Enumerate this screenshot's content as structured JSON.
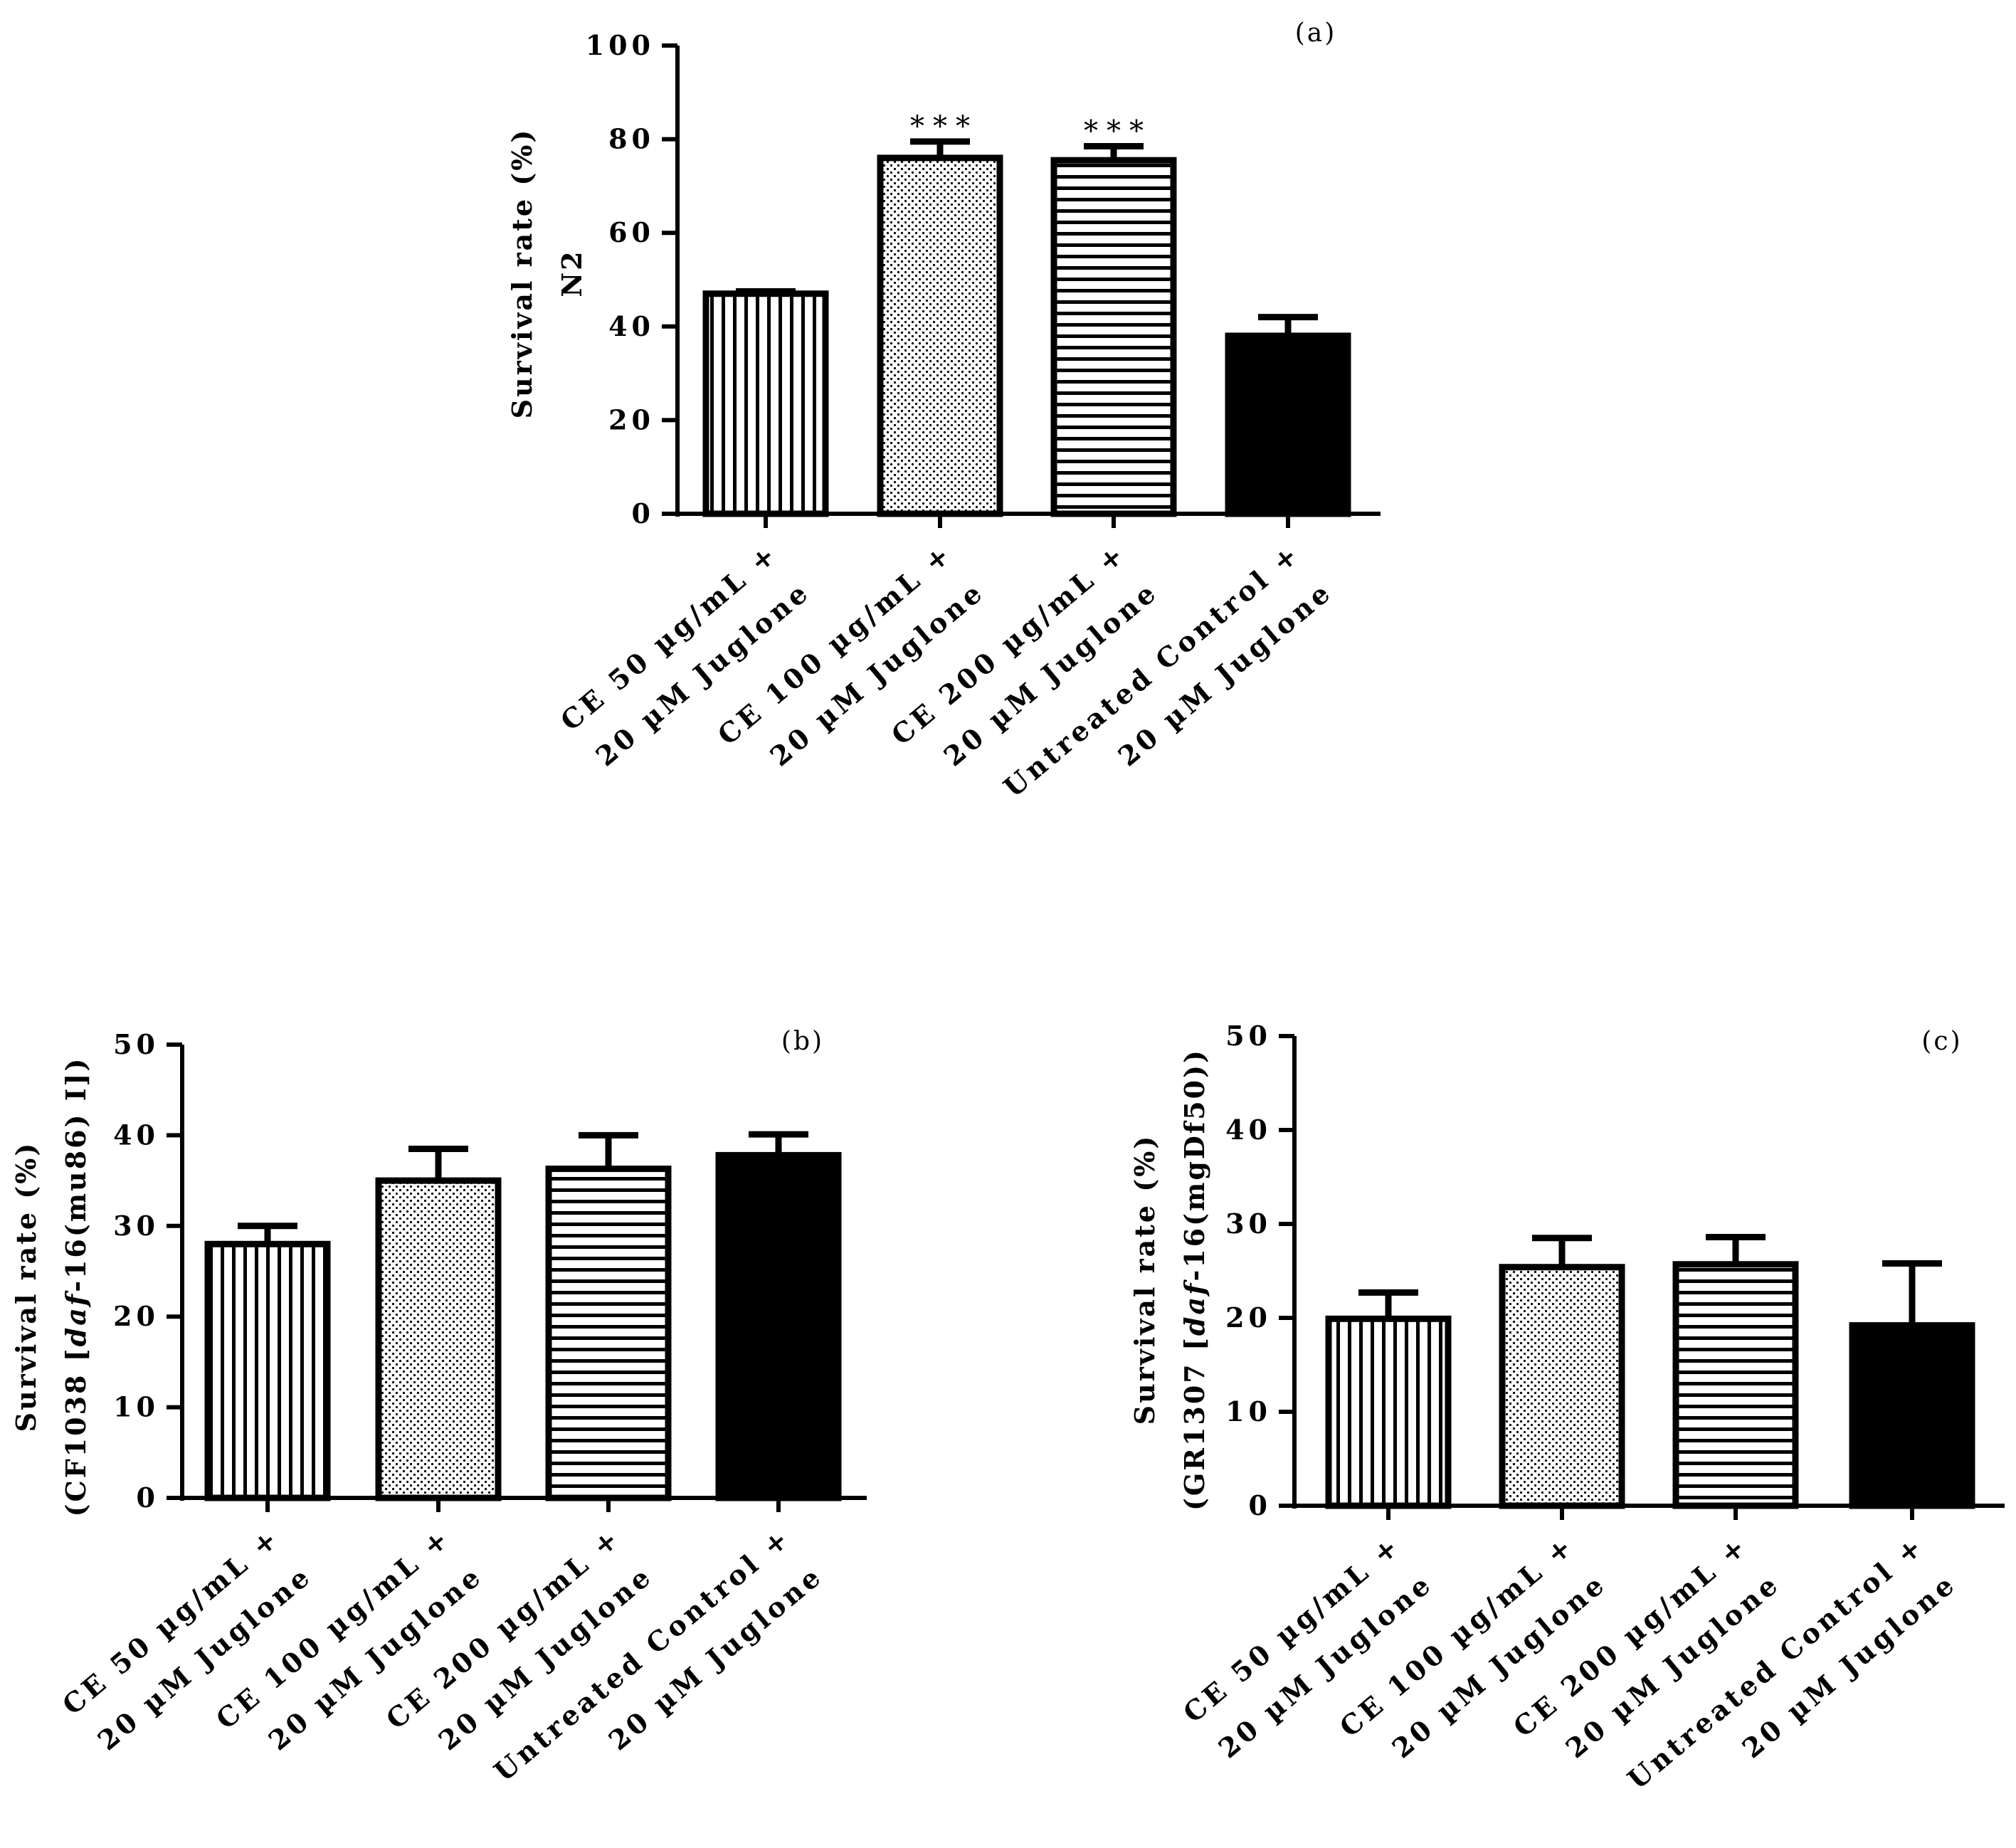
{
  "figure": {
    "panels": [
      "a",
      "b",
      "c"
    ]
  },
  "colors": {
    "ink": "#000000",
    "paper": "#ffffff"
  },
  "chart_data": [
    {
      "id": "a",
      "type": "bar",
      "panel_label": "(a)",
      "ylabel_lines": [
        "Survival rate (%)",
        "N2"
      ],
      "ylabel_italic_parts": [],
      "ylim": [
        0,
        100
      ],
      "yticks": [
        0,
        20,
        40,
        60,
        80,
        100
      ],
      "categories": [
        [
          "CE 50 µg/mL +",
          "20 µM Juglone"
        ],
        [
          "CE 100 µg/mL +",
          "20 µM Juglone"
        ],
        [
          "CE 200 µg/mL +",
          "20 µM Juglone"
        ],
        [
          "Untreated Control +",
          "20 µM Juglone"
        ]
      ],
      "values": [
        47,
        76,
        75.5,
        38
      ],
      "errors": [
        0.5,
        3.5,
        3,
        4
      ],
      "patterns": [
        "vertical-lines",
        "dots",
        "horizontal-lines",
        "solid"
      ],
      "annotations": [
        "",
        "***",
        "***",
        ""
      ]
    },
    {
      "id": "b",
      "type": "bar",
      "panel_label": "(b)",
      "ylabel_lines": [
        "Survival rate (%)",
        "(CF1038 [daf-16(mu86) I])"
      ],
      "ylim": [
        0,
        50
      ],
      "yticks": [
        0,
        10,
        20,
        30,
        40,
        50
      ],
      "categories": [
        [
          "CE 50 µg/mL +",
          "20 µM Juglone"
        ],
        [
          "CE 100 µg/mL +",
          "20 µM Juglone"
        ],
        [
          "CE 200 µg/mL +",
          "20 µM Juglone"
        ],
        [
          "Untreated Control +",
          "20 µM Juglone"
        ]
      ],
      "values": [
        28,
        35,
        36.3,
        37.8
      ],
      "errors": [
        2,
        3.5,
        3.7,
        2.3
      ],
      "patterns": [
        "vertical-lines",
        "dots",
        "horizontal-lines",
        "solid"
      ],
      "annotations": [
        "",
        "",
        "",
        ""
      ]
    },
    {
      "id": "c",
      "type": "bar",
      "panel_label": "(c)",
      "ylabel_lines": [
        "Survival rate (%)",
        "(GR1307 [daf-16(mgDf50))"
      ],
      "ylim": [
        0,
        50
      ],
      "yticks": [
        0,
        10,
        20,
        30,
        40,
        50
      ],
      "categories": [
        [
          "CE 50 µg/mL +",
          "20 µM Juglone"
        ],
        [
          "CE 100 µg/mL +",
          "20 µM Juglone"
        ],
        [
          "CE 200 µg/mL +",
          "20 µM Juglone"
        ],
        [
          "Untreated Control +",
          "20 µM Juglone"
        ]
      ],
      "values": [
        19.9,
        25.4,
        25.7,
        19.2
      ],
      "errors": [
        2.8,
        3.1,
        2.9,
        6.6
      ],
      "patterns": [
        "vertical-lines",
        "dots",
        "horizontal-lines",
        "solid"
      ],
      "annotations": [
        "",
        "",
        "",
        ""
      ]
    }
  ]
}
